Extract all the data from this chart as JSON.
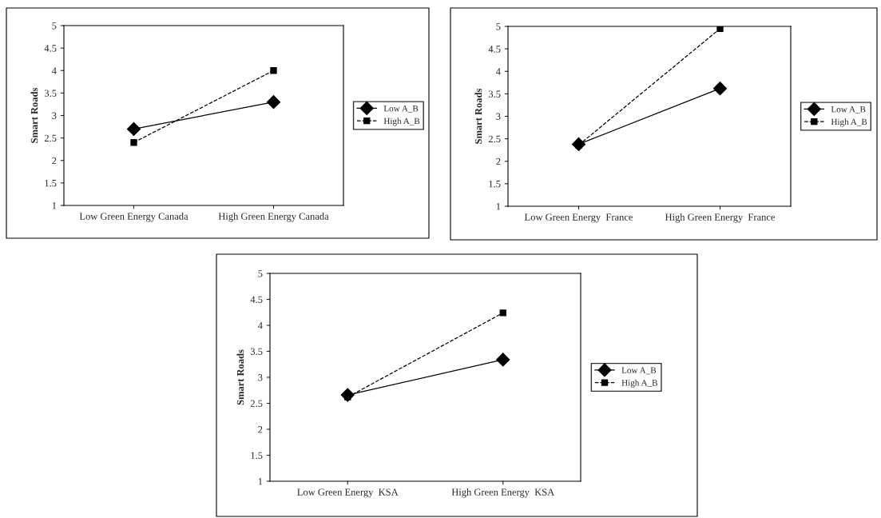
{
  "chart_data": [
    {
      "type": "line",
      "ylabel": "Smart Roads",
      "categories": [
        "Low Green Energy Canada",
        "High Green Energy Canada"
      ],
      "ylim": [
        1,
        5
      ],
      "yticks": [
        1,
        1.5,
        2,
        2.5,
        3,
        3.5,
        4,
        4.5,
        5
      ],
      "grid": false,
      "legend": "right",
      "series": [
        {
          "name": "Low A_B",
          "color": "#000000",
          "marker": "diamond",
          "line_style": "solid",
          "values": [
            2.7,
            3.3
          ]
        },
        {
          "name": "High A_B",
          "color": "#000000",
          "marker": "square",
          "line_style": "dashed",
          "values": [
            2.4,
            4.0
          ]
        }
      ]
    },
    {
      "type": "line",
      "ylabel": "Smart Roads",
      "categories": [
        "Low Green Energy  France",
        "High Green Energy  France"
      ],
      "ylim": [
        1,
        5
      ],
      "yticks": [
        1,
        1.5,
        2,
        2.5,
        3,
        3.5,
        4,
        4.5,
        5
      ],
      "grid": false,
      "legend": "right",
      "series": [
        {
          "name": "Low A_B",
          "color": "#000000",
          "marker": "diamond",
          "line_style": "solid",
          "values": [
            2.38,
            3.62
          ]
        },
        {
          "name": "High A_B",
          "color": "#000000",
          "marker": "square",
          "line_style": "dashed",
          "values": [
            2.36,
            4.95
          ]
        }
      ]
    },
    {
      "type": "line",
      "ylabel": "Smart Roads",
      "categories": [
        "Low Green Energy  KSA",
        "High Green Energy  KSA"
      ],
      "ylim": [
        1,
        5
      ],
      "yticks": [
        1,
        1.5,
        2,
        2.5,
        3,
        3.5,
        4,
        4.5,
        5
      ],
      "grid": false,
      "legend": "right",
      "series": [
        {
          "name": "Low A_B",
          "color": "#000000",
          "marker": "diamond",
          "line_style": "solid",
          "values": [
            2.66,
            3.34
          ]
        },
        {
          "name": "High A_B",
          "color": "#000000",
          "marker": "square",
          "line_style": "dashed",
          "values": [
            2.62,
            4.24
          ]
        }
      ]
    }
  ]
}
